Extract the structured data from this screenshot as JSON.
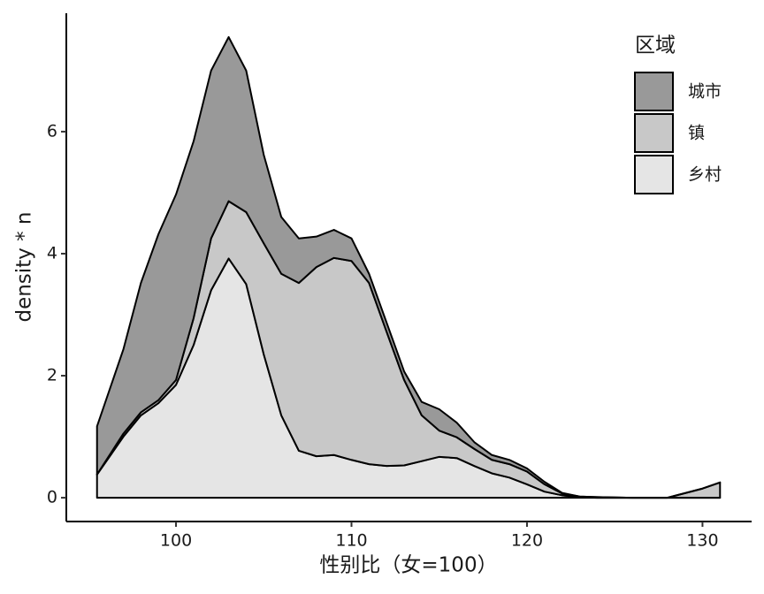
{
  "chart_data": {
    "type": "stacked_area",
    "x_label": "性别比（女=100）",
    "y_label": "density * n",
    "legend_title": "区域",
    "legend_position": "top-right",
    "x": [
      95.5,
      97,
      98,
      99,
      100,
      101,
      102,
      103,
      104,
      105,
      106,
      107,
      108,
      109,
      110,
      111,
      112,
      113,
      114,
      115,
      116,
      117,
      118,
      119,
      120,
      121,
      122,
      123,
      124,
      126,
      128,
      130,
      131
    ],
    "series": [
      {
        "name": "城市",
        "color": "#999999",
        "values": [
          0.79,
          1.38,
          2.12,
          2.72,
          3.04,
          2.9,
          2.75,
          2.69,
          2.32,
          1.45,
          0.93,
          0.73,
          0.5,
          0.46,
          0.37,
          0.15,
          0.15,
          0.14,
          0.22,
          0.35,
          0.24,
          0.11,
          0.08,
          0.07,
          0.05,
          0.04,
          0.01,
          0,
          0,
          0,
          0,
          0,
          0
        ]
      },
      {
        "name": "镇",
        "color": "#c8c8c8",
        "values": [
          0,
          0.05,
          0.05,
          0.05,
          0.08,
          0.44,
          0.85,
          0.94,
          1.18,
          1.82,
          2.32,
          2.75,
          3.1,
          3.23,
          3.26,
          2.97,
          2.2,
          1.4,
          0.75,
          0.43,
          0.34,
          0.28,
          0.22,
          0.22,
          0.21,
          0.12,
          0.03,
          0.01,
          0.01,
          0,
          0,
          0.15,
          0.25
        ]
      },
      {
        "name": "乡村",
        "color": "#e5e5e5",
        "values": [
          0.38,
          1.0,
          1.35,
          1.55,
          1.85,
          2.5,
          3.4,
          3.92,
          3.5,
          2.35,
          1.35,
          0.77,
          0.68,
          0.7,
          0.62,
          0.55,
          0.52,
          0.53,
          0.6,
          0.67,
          0.65,
          0.52,
          0.4,
          0.33,
          0.22,
          0.1,
          0.04,
          0.01,
          0,
          0,
          0,
          0,
          0
        ]
      }
    ],
    "xlim": [
      93.75,
      132.8
    ],
    "xticks": [
      100,
      110,
      120,
      130
    ],
    "ylim": [
      -0.39,
      7.94
    ],
    "yticks": [
      0,
      2,
      4,
      6
    ],
    "grid": false
  }
}
